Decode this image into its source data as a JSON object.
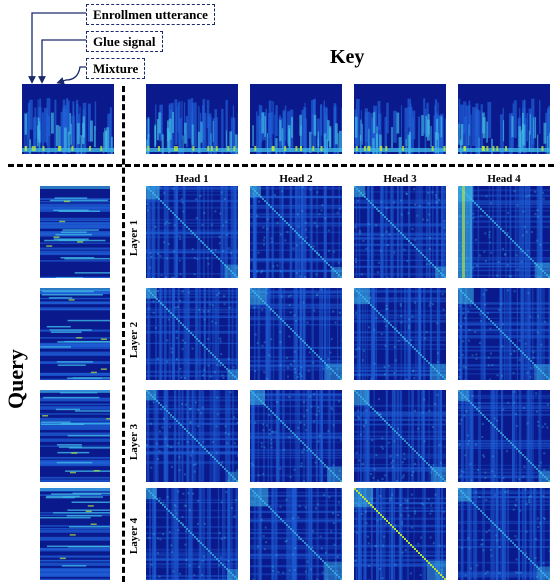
{
  "labels": {
    "enrollment": "Enrollmen utterance",
    "glue": "Glue signal",
    "mixture": "Mixture"
  },
  "key_title": "Key",
  "query_title": "Query",
  "heads": [
    "Head 1",
    "Head 2",
    "Head 3",
    "Head 4"
  ],
  "layers": [
    "Layer 1",
    "Layer 2",
    "Layer 3",
    "Layer 4"
  ],
  "colors": {
    "deep": "#0a1a8c",
    "mid": "#1f5fd6",
    "light": "#3fb8e6",
    "hot": "#b8e83c",
    "line": "#1a2a6c"
  }
}
